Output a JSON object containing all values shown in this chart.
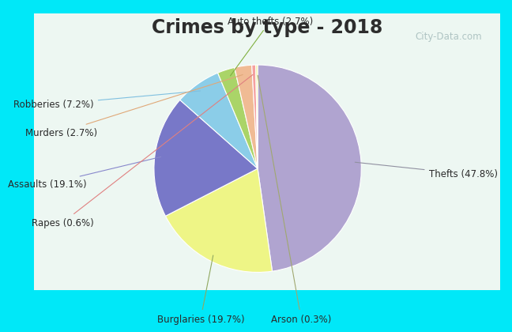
{
  "title": "Crimes by type - 2018",
  "title_fontsize": 17,
  "title_fontweight": "bold",
  "title_color": "#2d2d2d",
  "labels_display": [
    "Thefts (47.8%)",
    "Burglaries (19.7%)",
    "Assaults (19.1%)",
    "Robberies (7.2%)",
    "Auto thefts (2.7%)",
    "Murders (2.7%)",
    "Rapes (0.6%)",
    "Arson (0.3%)"
  ],
  "percentages": [
    47.8,
    19.7,
    19.1,
    7.2,
    2.7,
    2.7,
    0.6,
    0.3
  ],
  "colors": [
    "#b0a4d0",
    "#eef586",
    "#7878c8",
    "#8bcde8",
    "#aad468",
    "#f0bb94",
    "#f5a0a0",
    "#f0f0a0"
  ],
  "background_outer": "#00e8f8",
  "background_inner_color": "#c8e8d8",
  "watermark": "City-Data.com",
  "annotation_fontsize": 8.5,
  "annotation_color": "#2a2a2a"
}
